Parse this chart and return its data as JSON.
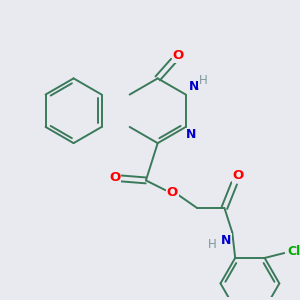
{
  "background_color": "#e8eaf0",
  "bond_color": "#3a7a5a",
  "atom_colors": {
    "O": "#ff0000",
    "N": "#0000cc",
    "H": "#7a9a9a",
    "Cl": "#00aa00",
    "C": "#3a7a5a"
  },
  "figsize": [
    3.0,
    3.0
  ],
  "dpi": 100
}
